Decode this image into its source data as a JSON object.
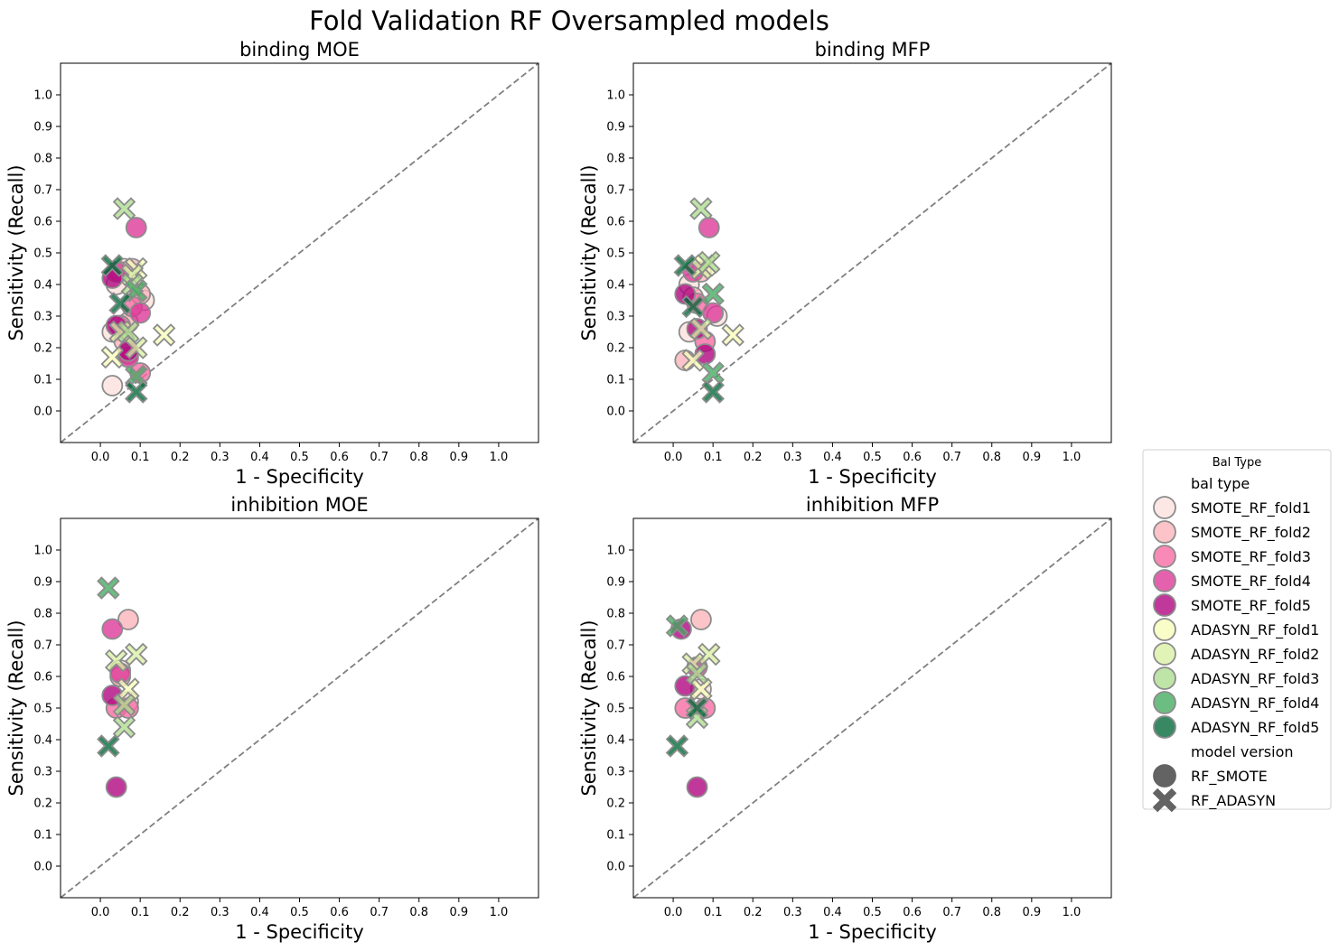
{
  "figure": {
    "suptitle": "Fold Validation RF Oversampled models"
  },
  "legend": {
    "title": "Bal Type",
    "hue_heading": "bal type",
    "style_heading": "model version",
    "hue_entries": [
      {
        "label": "SMOTE_RF_fold1",
        "color": "#fde0dd"
      },
      {
        "label": "SMOTE_RF_fold2",
        "color": "#fbb4b9"
      },
      {
        "label": "SMOTE_RF_fold3",
        "color": "#f768a1"
      },
      {
        "label": "SMOTE_RF_fold4",
        "color": "#dd3497"
      },
      {
        "label": "SMOTE_RF_fold5",
        "color": "#ae017e"
      },
      {
        "label": "ADASYN_RF_fold1",
        "color": "#f7fcb9"
      },
      {
        "label": "ADASYN_RF_fold2",
        "color": "#d9f0a3"
      },
      {
        "label": "ADASYN_RF_fold3",
        "color": "#addd8e"
      },
      {
        "label": "ADASYN_RF_fold4",
        "color": "#41ab5d"
      },
      {
        "label": "ADASYN_RF_fold5",
        "color": "#006837"
      }
    ],
    "style_entries": [
      {
        "label": "RF_SMOTE",
        "marker": "circle",
        "color": "#636363"
      },
      {
        "label": "RF_ADASYN",
        "marker": "x",
        "color": "#636363"
      }
    ]
  },
  "chart_data": [
    {
      "type": "scatter",
      "title": "binding MOE",
      "xlabel": "1 - Specificity",
      "ylabel": "Sensitivity (Recall)",
      "xlim": [
        -0.1,
        1.1
      ],
      "ylim": [
        -0.1,
        1.1
      ],
      "xticks": [
        "0.0",
        "0.1",
        "0.2",
        "0.3",
        "0.4",
        "0.5",
        "0.6",
        "0.7",
        "0.8",
        "0.9",
        "1.0"
      ],
      "yticks": [
        "0.0",
        "0.1",
        "0.2",
        "0.3",
        "0.4",
        "0.5",
        "0.6",
        "0.7",
        "0.8",
        "0.9",
        "1.0"
      ],
      "reference_line": "diagonal",
      "points": [
        {
          "x": 0.03,
          "y": 0.08,
          "fold": 1,
          "model": "RF_SMOTE"
        },
        {
          "x": 0.03,
          "y": 0.25,
          "fold": 1,
          "model": "RF_SMOTE"
        },
        {
          "x": 0.04,
          "y": 0.4,
          "fold": 1,
          "model": "RF_SMOTE"
        },
        {
          "x": 0.06,
          "y": 0.45,
          "fold": 1,
          "model": "RF_SMOTE"
        },
        {
          "x": 0.11,
          "y": 0.35,
          "fold": 1,
          "model": "RF_SMOTE"
        },
        {
          "x": 0.05,
          "y": 0.44,
          "fold": 2,
          "model": "RF_SMOTE"
        },
        {
          "x": 0.07,
          "y": 0.28,
          "fold": 2,
          "model": "RF_SMOTE"
        },
        {
          "x": 0.08,
          "y": 0.45,
          "fold": 2,
          "model": "RF_SMOTE"
        },
        {
          "x": 0.06,
          "y": 0.22,
          "fold": 2,
          "model": "RF_SMOTE"
        },
        {
          "x": 0.1,
          "y": 0.37,
          "fold": 2,
          "model": "RF_SMOTE"
        },
        {
          "x": 0.07,
          "y": 0.18,
          "fold": 3,
          "model": "RF_SMOTE"
        },
        {
          "x": 0.08,
          "y": 0.33,
          "fold": 3,
          "model": "RF_SMOTE"
        },
        {
          "x": 0.1,
          "y": 0.12,
          "fold": 3,
          "model": "RF_SMOTE"
        },
        {
          "x": 0.05,
          "y": 0.27,
          "fold": 3,
          "model": "RF_SMOTE"
        },
        {
          "x": 0.09,
          "y": 0.58,
          "fold": 4,
          "model": "RF_SMOTE"
        },
        {
          "x": 0.04,
          "y": 0.44,
          "fold": 4,
          "model": "RF_SMOTE"
        },
        {
          "x": 0.07,
          "y": 0.17,
          "fold": 4,
          "model": "RF_SMOTE"
        },
        {
          "x": 0.1,
          "y": 0.31,
          "fold": 4,
          "model": "RF_SMOTE"
        },
        {
          "x": 0.03,
          "y": 0.42,
          "fold": 5,
          "model": "RF_SMOTE"
        },
        {
          "x": 0.04,
          "y": 0.27,
          "fold": 5,
          "model": "RF_SMOTE"
        },
        {
          "x": 0.07,
          "y": 0.19,
          "fold": 5,
          "model": "RF_SMOTE"
        },
        {
          "x": 0.03,
          "y": 0.17,
          "fold": 1,
          "model": "RF_ADASYN"
        },
        {
          "x": 0.16,
          "y": 0.24,
          "fold": 1,
          "model": "RF_ADASYN"
        },
        {
          "x": 0.09,
          "y": 0.45,
          "fold": 1,
          "model": "RF_ADASYN"
        },
        {
          "x": 0.05,
          "y": 0.25,
          "fold": 2,
          "model": "RF_ADASYN"
        },
        {
          "x": 0.08,
          "y": 0.43,
          "fold": 2,
          "model": "RF_ADASYN"
        },
        {
          "x": 0.09,
          "y": 0.2,
          "fold": 2,
          "model": "RF_ADASYN"
        },
        {
          "x": 0.06,
          "y": 0.64,
          "fold": 3,
          "model": "RF_ADASYN"
        },
        {
          "x": 0.08,
          "y": 0.4,
          "fold": 3,
          "model": "RF_ADASYN"
        },
        {
          "x": 0.07,
          "y": 0.25,
          "fold": 3,
          "model": "RF_ADASYN"
        },
        {
          "x": 0.09,
          "y": 0.11,
          "fold": 4,
          "model": "RF_ADASYN"
        },
        {
          "x": 0.09,
          "y": 0.38,
          "fold": 4,
          "model": "RF_ADASYN"
        },
        {
          "x": 0.09,
          "y": 0.06,
          "fold": 5,
          "model": "RF_ADASYN"
        },
        {
          "x": 0.05,
          "y": 0.34,
          "fold": 5,
          "model": "RF_ADASYN"
        },
        {
          "x": 0.03,
          "y": 0.46,
          "fold": 5,
          "model": "RF_ADASYN"
        }
      ]
    },
    {
      "type": "scatter",
      "title": "binding MFP",
      "xlabel": "1 - Specificity",
      "ylabel": "Sensitivity (Recall)",
      "xlim": [
        -0.1,
        1.1
      ],
      "ylim": [
        -0.1,
        1.1
      ],
      "xticks": [
        "0.0",
        "0.1",
        "0.2",
        "0.3",
        "0.4",
        "0.5",
        "0.6",
        "0.7",
        "0.8",
        "0.9",
        "1.0"
      ],
      "yticks": [
        "0.0",
        "0.1",
        "0.2",
        "0.3",
        "0.4",
        "0.5",
        "0.6",
        "0.7",
        "0.8",
        "0.9",
        "1.0"
      ],
      "reference_line": "diagonal",
      "points": [
        {
          "x": 0.04,
          "y": 0.4,
          "fold": 1,
          "model": "RF_SMOTE"
        },
        {
          "x": 0.11,
          "y": 0.3,
          "fold": 1,
          "model": "RF_SMOTE"
        },
        {
          "x": 0.04,
          "y": 0.25,
          "fold": 1,
          "model": "RF_SMOTE"
        },
        {
          "x": 0.03,
          "y": 0.16,
          "fold": 2,
          "model": "RF_SMOTE"
        },
        {
          "x": 0.05,
          "y": 0.36,
          "fold": 2,
          "model": "RF_SMOTE"
        },
        {
          "x": 0.07,
          "y": 0.44,
          "fold": 2,
          "model": "RF_SMOTE"
        },
        {
          "x": 0.06,
          "y": 0.34,
          "fold": 3,
          "model": "RF_SMOTE"
        },
        {
          "x": 0.08,
          "y": 0.22,
          "fold": 3,
          "model": "RF_SMOTE"
        },
        {
          "x": 0.09,
          "y": 0.58,
          "fold": 4,
          "model": "RF_SMOTE"
        },
        {
          "x": 0.05,
          "y": 0.44,
          "fold": 4,
          "model": "RF_SMOTE"
        },
        {
          "x": 0.1,
          "y": 0.31,
          "fold": 4,
          "model": "RF_SMOTE"
        },
        {
          "x": 0.03,
          "y": 0.37,
          "fold": 5,
          "model": "RF_SMOTE"
        },
        {
          "x": 0.06,
          "y": 0.26,
          "fold": 5,
          "model": "RF_SMOTE"
        },
        {
          "x": 0.08,
          "y": 0.18,
          "fold": 5,
          "model": "RF_SMOTE"
        },
        {
          "x": 0.15,
          "y": 0.24,
          "fold": 1,
          "model": "RF_ADASYN"
        },
        {
          "x": 0.05,
          "y": 0.16,
          "fold": 1,
          "model": "RF_ADASYN"
        },
        {
          "x": 0.08,
          "y": 0.46,
          "fold": 1,
          "model": "RF_ADASYN"
        },
        {
          "x": 0.07,
          "y": 0.26,
          "fold": 2,
          "model": "RF_ADASYN"
        },
        {
          "x": 0.07,
          "y": 0.45,
          "fold": 2,
          "model": "RF_ADASYN"
        },
        {
          "x": 0.07,
          "y": 0.64,
          "fold": 3,
          "model": "RF_ADASYN"
        },
        {
          "x": 0.09,
          "y": 0.47,
          "fold": 3,
          "model": "RF_ADASYN"
        },
        {
          "x": 0.1,
          "y": 0.12,
          "fold": 4,
          "model": "RF_ADASYN"
        },
        {
          "x": 0.1,
          "y": 0.37,
          "fold": 4,
          "model": "RF_ADASYN"
        },
        {
          "x": 0.1,
          "y": 0.06,
          "fold": 5,
          "model": "RF_ADASYN"
        },
        {
          "x": 0.05,
          "y": 0.33,
          "fold": 5,
          "model": "RF_ADASYN"
        },
        {
          "x": 0.03,
          "y": 0.46,
          "fold": 5,
          "model": "RF_ADASYN"
        }
      ]
    },
    {
      "type": "scatter",
      "title": "inhibition MOE",
      "xlabel": "1 - Specificity",
      "ylabel": "Sensitivity (Recall)",
      "xlim": [
        -0.1,
        1.1
      ],
      "ylim": [
        -0.1,
        1.1
      ],
      "xticks": [
        "0.0",
        "0.1",
        "0.2",
        "0.3",
        "0.4",
        "0.5",
        "0.6",
        "0.7",
        "0.8",
        "0.9",
        "1.0"
      ],
      "yticks": [
        "0.0",
        "0.1",
        "0.2",
        "0.3",
        "0.4",
        "0.5",
        "0.6",
        "0.7",
        "0.8",
        "0.9",
        "1.0"
      ],
      "reference_line": "diagonal",
      "points": [
        {
          "x": 0.07,
          "y": 0.78,
          "fold": 2,
          "model": "RF_SMOTE"
        },
        {
          "x": 0.05,
          "y": 0.62,
          "fold": 1,
          "model": "RF_SMOTE"
        },
        {
          "x": 0.07,
          "y": 0.52,
          "fold": 1,
          "model": "RF_SMOTE"
        },
        {
          "x": 0.05,
          "y": 0.6,
          "fold": 2,
          "model": "RF_SMOTE"
        },
        {
          "x": 0.04,
          "y": 0.5,
          "fold": 3,
          "model": "RF_SMOTE"
        },
        {
          "x": 0.07,
          "y": 0.5,
          "fold": 3,
          "model": "RF_SMOTE"
        },
        {
          "x": 0.03,
          "y": 0.75,
          "fold": 4,
          "model": "RF_SMOTE"
        },
        {
          "x": 0.05,
          "y": 0.61,
          "fold": 4,
          "model": "RF_SMOTE"
        },
        {
          "x": 0.03,
          "y": 0.54,
          "fold": 5,
          "model": "RF_SMOTE"
        },
        {
          "x": 0.04,
          "y": 0.25,
          "fold": 5,
          "model": "RF_SMOTE"
        },
        {
          "x": 0.02,
          "y": 0.88,
          "fold": 4,
          "model": "RF_ADASYN"
        },
        {
          "x": 0.09,
          "y": 0.67,
          "fold": 2,
          "model": "RF_ADASYN"
        },
        {
          "x": 0.07,
          "y": 0.56,
          "fold": 1,
          "model": "RF_ADASYN"
        },
        {
          "x": 0.04,
          "y": 0.65,
          "fold": 2,
          "model": "RF_ADASYN"
        },
        {
          "x": 0.06,
          "y": 0.51,
          "fold": 3,
          "model": "RF_ADASYN"
        },
        {
          "x": 0.06,
          "y": 0.44,
          "fold": 3,
          "model": "RF_ADASYN"
        },
        {
          "x": 0.02,
          "y": 0.38,
          "fold": 5,
          "model": "RF_ADASYN"
        }
      ]
    },
    {
      "type": "scatter",
      "title": "inhibition MFP",
      "xlabel": "1 - Specificity",
      "ylabel": "Sensitivity (Recall)",
      "xlim": [
        -0.1,
        1.1
      ],
      "ylim": [
        -0.1,
        1.1
      ],
      "xticks": [
        "0.0",
        "0.1",
        "0.2",
        "0.3",
        "0.4",
        "0.5",
        "0.6",
        "0.7",
        "0.8",
        "0.9",
        "1.0"
      ],
      "yticks": [
        "0.0",
        "0.1",
        "0.2",
        "0.3",
        "0.4",
        "0.5",
        "0.6",
        "0.7",
        "0.8",
        "0.9",
        "1.0"
      ],
      "reference_line": "diagonal",
      "points": [
        {
          "x": 0.07,
          "y": 0.78,
          "fold": 2,
          "model": "RF_SMOTE"
        },
        {
          "x": 0.07,
          "y": 0.56,
          "fold": 1,
          "model": "RF_SMOTE"
        },
        {
          "x": 0.03,
          "y": 0.5,
          "fold": 3,
          "model": "RF_SMOTE"
        },
        {
          "x": 0.08,
          "y": 0.5,
          "fold": 3,
          "model": "RF_SMOTE"
        },
        {
          "x": 0.06,
          "y": 0.63,
          "fold": 4,
          "model": "RF_SMOTE"
        },
        {
          "x": 0.03,
          "y": 0.57,
          "fold": 5,
          "model": "RF_SMOTE"
        },
        {
          "x": 0.06,
          "y": 0.25,
          "fold": 5,
          "model": "RF_SMOTE"
        },
        {
          "x": 0.02,
          "y": 0.75,
          "fold": 5,
          "model": "RF_SMOTE"
        },
        {
          "x": 0.01,
          "y": 0.76,
          "fold": 4,
          "model": "RF_ADASYN"
        },
        {
          "x": 0.09,
          "y": 0.67,
          "fold": 2,
          "model": "RF_ADASYN"
        },
        {
          "x": 0.07,
          "y": 0.56,
          "fold": 1,
          "model": "RF_ADASYN"
        },
        {
          "x": 0.05,
          "y": 0.64,
          "fold": 2,
          "model": "RF_ADASYN"
        },
        {
          "x": 0.06,
          "y": 0.61,
          "fold": 3,
          "model": "RF_ADASYN"
        },
        {
          "x": 0.06,
          "y": 0.47,
          "fold": 3,
          "model": "RF_ADASYN"
        },
        {
          "x": 0.06,
          "y": 0.5,
          "fold": 5,
          "model": "RF_ADASYN"
        },
        {
          "x": 0.01,
          "y": 0.38,
          "fold": 5,
          "model": "RF_ADASYN"
        }
      ]
    }
  ]
}
